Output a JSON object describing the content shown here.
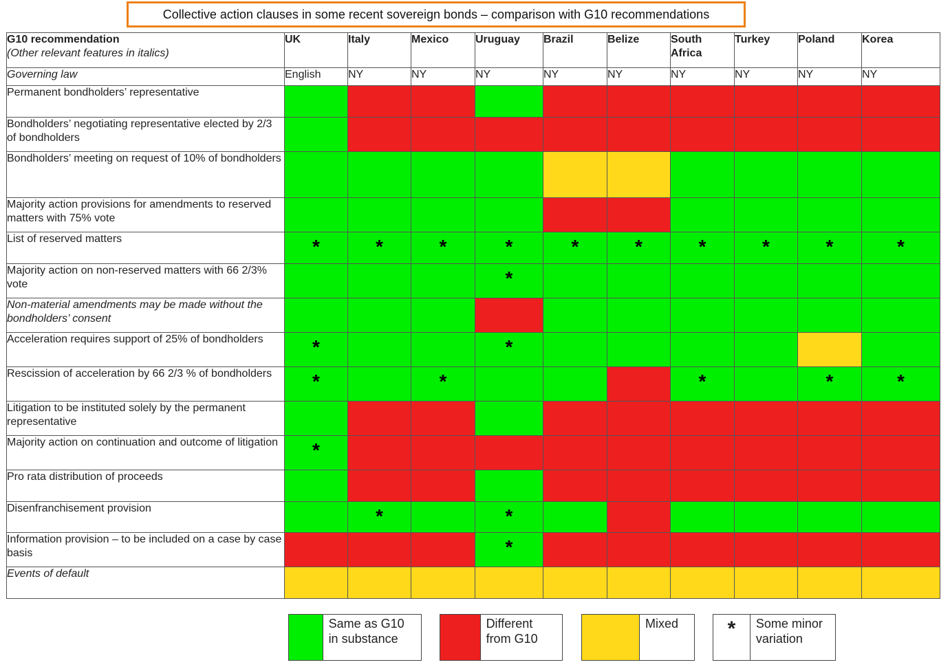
{
  "title": "Collective action clauses in some recent sovereign bonds – comparison with G10 recommendations",
  "header": {
    "first_col_title": "G10 recommendation",
    "first_col_subtitle": "(Other relevant features in italics)",
    "countries": [
      "UK",
      "Italy",
      "Mexico",
      "Uruguay",
      "Brazil",
      "Belize",
      "South Africa",
      "Turkey",
      "Poland",
      "Korea"
    ]
  },
  "governing_law": {
    "label": "Governing law",
    "values": [
      "English",
      "NY",
      "NY",
      "NY",
      "NY",
      "NY",
      "NY",
      "NY",
      "NY",
      "NY"
    ]
  },
  "rows": [
    {
      "label": "Permanent bondholders’ representative",
      "italic": false,
      "cells": [
        "G",
        "R",
        "R",
        "G",
        "R",
        "R",
        "R",
        "R",
        "R",
        "R"
      ],
      "stars": [
        0,
        0,
        0,
        0,
        0,
        0,
        0,
        0,
        0,
        0
      ]
    },
    {
      "label": "Bondholders’ negotiating representative elected by 2/3 of bondholders",
      "italic": false,
      "cells": [
        "G",
        "R",
        "R",
        "R",
        "R",
        "R",
        "R",
        "R",
        "R",
        "R"
      ],
      "stars": [
        0,
        0,
        0,
        0,
        0,
        0,
        0,
        0,
        0,
        0
      ]
    },
    {
      "label": "Bondholders’ meeting on request of  10% of bondholders",
      "italic": false,
      "cells": [
        "G",
        "G",
        "G",
        "G",
        "Y",
        "Y",
        "G",
        "G",
        "G",
        "G"
      ],
      "stars": [
        0,
        0,
        0,
        0,
        0,
        0,
        0,
        0,
        0,
        0
      ]
    },
    {
      "label": "Majority action provisions for amendments to reserved matters with 75% vote",
      "italic": false,
      "cells": [
        "G",
        "G",
        "G",
        "G",
        "R",
        "R",
        "G",
        "G",
        "G",
        "G"
      ],
      "stars": [
        0,
        0,
        0,
        0,
        0,
        0,
        0,
        0,
        0,
        0
      ]
    },
    {
      "label": "List of reserved matters",
      "italic": false,
      "cells": [
        "G",
        "G",
        "G",
        "G",
        "G",
        "G",
        "G",
        "G",
        "G",
        "G"
      ],
      "stars": [
        1,
        1,
        1,
        1,
        1,
        1,
        1,
        1,
        1,
        1
      ]
    },
    {
      "label": "Majority action on non-reserved matters with 66 2/3% vote",
      "italic": false,
      "cells": [
        "G",
        "G",
        "G",
        "G",
        "G",
        "G",
        "G",
        "G",
        "G",
        "G"
      ],
      "stars": [
        0,
        0,
        0,
        1,
        0,
        0,
        0,
        0,
        0,
        0
      ]
    },
    {
      "label": "Non-material amendments may be made without the bondholders’ consent",
      "italic": true,
      "cells": [
        "G",
        "G",
        "G",
        "R",
        "G",
        "G",
        "G",
        "G",
        "G",
        "G"
      ],
      "stars": [
        0,
        0,
        0,
        0,
        0,
        0,
        0,
        0,
        0,
        0
      ]
    },
    {
      "label": "Acceleration requires support of  25% of bondholders",
      "italic": false,
      "cells": [
        "G",
        "G",
        "G",
        "G",
        "G",
        "G",
        "G",
        "G",
        "Y",
        "G"
      ],
      "stars": [
        1,
        0,
        0,
        1,
        0,
        0,
        0,
        0,
        0,
        0
      ]
    },
    {
      "label": "Rescission of acceleration by 66 2/3 % of bondholders",
      "italic": false,
      "cells": [
        "G",
        "G",
        "G",
        "G",
        "G",
        "R",
        "G",
        "G",
        "G",
        "G"
      ],
      "stars": [
        1,
        0,
        1,
        0,
        0,
        0,
        1,
        0,
        1,
        1
      ]
    },
    {
      "label": "Litigation to be instituted solely by the permanent representative",
      "italic": false,
      "cells": [
        "G",
        "R",
        "R",
        "G",
        "R",
        "R",
        "R",
        "R",
        "R",
        "R"
      ],
      "stars": [
        0,
        0,
        0,
        0,
        0,
        0,
        0,
        0,
        0,
        0
      ]
    },
    {
      "label": "Majority action on continuation and outcome of litigation",
      "italic": false,
      "cells": [
        "G",
        "R",
        "R",
        "R",
        "R",
        "R",
        "R",
        "R",
        "R",
        "R"
      ],
      "stars": [
        1,
        0,
        0,
        0,
        0,
        0,
        0,
        0,
        0,
        0
      ]
    },
    {
      "label": "Pro rata distribution of proceeds",
      "italic": false,
      "cells": [
        "G",
        "R",
        "R",
        "G",
        "R",
        "R",
        "R",
        "R",
        "R",
        "R"
      ],
      "stars": [
        0,
        0,
        0,
        0,
        0,
        0,
        0,
        0,
        0,
        0
      ]
    },
    {
      "label": "Disenfranchisement provision",
      "italic": false,
      "cells": [
        "G",
        "G",
        "G",
        "G",
        "G",
        "R",
        "G",
        "G",
        "G",
        "G"
      ],
      "stars": [
        0,
        1,
        0,
        1,
        0,
        0,
        0,
        0,
        0,
        0
      ]
    },
    {
      "label": "Information provision – to be included on a case by case basis",
      "italic": false,
      "cells": [
        "R",
        "R",
        "R",
        "G",
        "R",
        "R",
        "R",
        "R",
        "R",
        "R"
      ],
      "stars": [
        0,
        0,
        0,
        1,
        0,
        0,
        0,
        0,
        0,
        0
      ]
    },
    {
      "label": "Events of default",
      "italic": true,
      "cells": [
        "Y",
        "Y",
        "Y",
        "Y",
        "Y",
        "Y",
        "Y",
        "Y",
        "Y",
        "Y"
      ],
      "stars": [
        0,
        0,
        0,
        0,
        0,
        0,
        0,
        0,
        0,
        0
      ]
    }
  ],
  "star_symbol": "*",
  "colors": {
    "G": "#00ee00",
    "R": "#ee1f1f",
    "Y": "#ffd91a",
    "title_border": "#ee8118"
  },
  "legend": {
    "same": "Same as G10 in substance",
    "different": "Different from G10",
    "mixed": "Mixed",
    "star_symbol": "*",
    "minor": "Some minor variation"
  }
}
